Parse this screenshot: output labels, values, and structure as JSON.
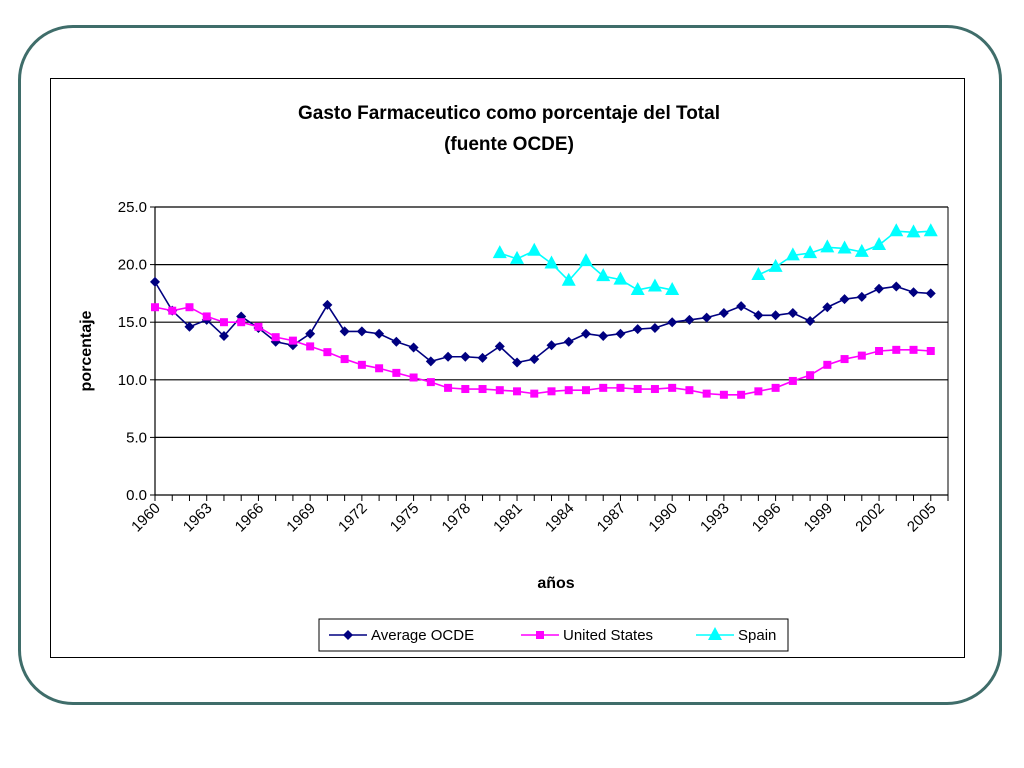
{
  "colors": {
    "frame": "#3f6d6a",
    "average": "#000080",
    "us": "#ff00ff",
    "spain": "#00ffff"
  },
  "chart_data": {
    "type": "line",
    "title": "Gasto Farmaceutico como porcentaje del Total",
    "subtitle": "(fuente OCDE)",
    "xlabel": "años",
    "ylabel": "porcentaje",
    "ylim": [
      0,
      25
    ],
    "yticks": [
      "0.0",
      "5.0",
      "10.0",
      "15.0",
      "20.0",
      "25.0"
    ],
    "xlim": [
      1960,
      2006
    ],
    "xticks": [
      "1960",
      "1963",
      "1966",
      "1969",
      "1972",
      "1975",
      "1978",
      "1981",
      "1984",
      "1987",
      "1990",
      "1993",
      "1996",
      "1999",
      "2002",
      "2005"
    ],
    "grid": "horizontal major",
    "legend_position": "bottom",
    "series": [
      {
        "name": "Average OCDE",
        "marker": "diamond",
        "x": [
          1960,
          1961,
          1962,
          1963,
          1964,
          1965,
          1966,
          1967,
          1968,
          1969,
          1970,
          1971,
          1972,
          1973,
          1974,
          1975,
          1976,
          1977,
          1978,
          1979,
          1980,
          1981,
          1982,
          1983,
          1984,
          1985,
          1986,
          1987,
          1988,
          1989,
          1990,
          1991,
          1992,
          1993,
          1994,
          1995,
          1996,
          1997,
          1998,
          1999,
          2000,
          2001,
          2002,
          2003,
          2004,
          2005
        ],
        "values": [
          18.5,
          16.0,
          14.6,
          15.2,
          13.8,
          15.5,
          14.5,
          13.3,
          13.0,
          14.0,
          16.5,
          14.2,
          14.2,
          14.0,
          13.3,
          12.8,
          11.6,
          12.0,
          12.0,
          11.9,
          12.9,
          11.5,
          11.8,
          13.0,
          13.3,
          14.0,
          13.8,
          14.0,
          14.4,
          14.5,
          15.0,
          15.2,
          15.4,
          15.8,
          16.4,
          15.6,
          15.6,
          15.8,
          15.1,
          16.3,
          17.0,
          17.2,
          17.9,
          18.1,
          17.6,
          17.5
        ]
      },
      {
        "name": "United States",
        "marker": "square",
        "x": [
          1960,
          1961,
          1962,
          1963,
          1964,
          1965,
          1966,
          1967,
          1968,
          1969,
          1970,
          1971,
          1972,
          1973,
          1974,
          1975,
          1976,
          1977,
          1978,
          1979,
          1980,
          1981,
          1982,
          1983,
          1984,
          1985,
          1986,
          1987,
          1988,
          1989,
          1990,
          1991,
          1992,
          1993,
          1994,
          1995,
          1996,
          1997,
          1998,
          1999,
          2000,
          2001,
          2002,
          2003,
          2004,
          2005
        ],
        "values": [
          16.3,
          16.0,
          16.3,
          15.5,
          15.0,
          15.0,
          14.6,
          13.7,
          13.4,
          12.9,
          12.4,
          11.8,
          11.3,
          11.0,
          10.6,
          10.2,
          9.8,
          9.3,
          9.2,
          9.2,
          9.1,
          9.0,
          8.8,
          9.0,
          9.1,
          9.1,
          9.3,
          9.3,
          9.2,
          9.2,
          9.3,
          9.1,
          8.8,
          8.7,
          8.7,
          9.0,
          9.3,
          9.9,
          10.4,
          11.3,
          11.8,
          12.1,
          12.5,
          12.6,
          12.6,
          12.5
        ]
      },
      {
        "name": "Spain",
        "marker": "triangle",
        "x": [
          1980,
          1981,
          1982,
          1983,
          1984,
          1985,
          1986,
          1987,
          1988,
          1989,
          1990,
          1995,
          1996,
          1997,
          1998,
          1999,
          2000,
          2001,
          2002,
          2003,
          2004,
          2005
        ],
        "values": [
          21.0,
          20.5,
          21.2,
          20.1,
          18.6,
          20.3,
          19.0,
          18.7,
          17.8,
          18.1,
          17.8,
          19.1,
          19.8,
          20.8,
          21.0,
          21.5,
          21.4,
          21.1,
          21.7,
          22.9,
          22.8,
          22.9
        ]
      }
    ]
  }
}
